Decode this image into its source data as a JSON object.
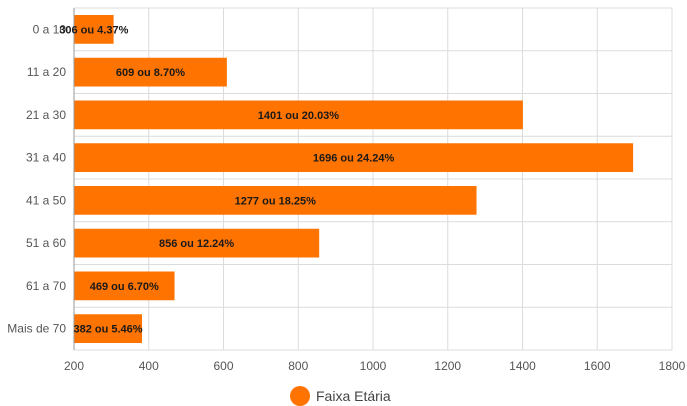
{
  "chart_data": {
    "type": "bar",
    "orientation": "horizontal",
    "categories": [
      "0 a 10",
      "11 a 20",
      "21 a 30",
      "31 a 40",
      "41 a 50",
      "51 a 60",
      "61 a 70",
      "Mais de 70"
    ],
    "series": [
      {
        "name": "Faixa Etária",
        "color": "#ff7300",
        "values": [
          306,
          609,
          1401,
          1696,
          1277,
          856,
          469,
          382
        ],
        "labels": [
          "306 ou 4.37%",
          "609 ou 8.70%",
          "1401 ou 20.03%",
          "1696 ou 24.24%",
          "1277 ou 18.25%",
          "856 ou 12.24%",
          "469 ou 6.70%",
          "382 ou 5.46%"
        ]
      }
    ],
    "xlim": [
      200,
      1800
    ],
    "x_ticks": [
      "200",
      "400",
      "600",
      "800",
      "1000",
      "1200",
      "1400",
      "1600",
      "1800"
    ],
    "x_tick_values": [
      200,
      400,
      600,
      800,
      1000,
      1200,
      1400,
      1600,
      1800
    ],
    "grid": true,
    "legend": {
      "position": "bottom-center",
      "entries": [
        "Faixa Etária"
      ]
    },
    "title": "",
    "xlabel": "",
    "ylabel": ""
  },
  "colors": {
    "bar": "#ff7300",
    "grid": "#dcdcdc",
    "axis": "#999999"
  }
}
